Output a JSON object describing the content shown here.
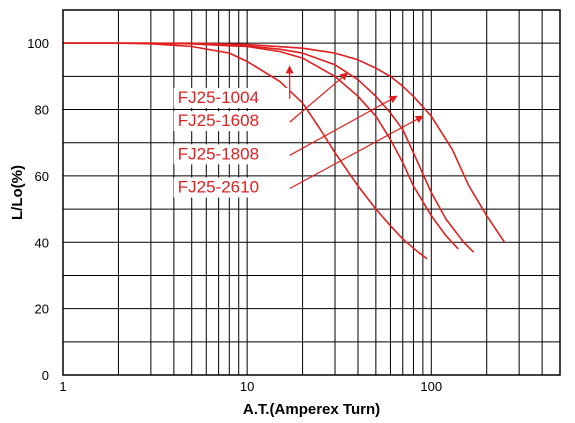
{
  "chart_data": {
    "type": "line",
    "title": "",
    "xlabel": "A.T.(Amperex Turn)",
    "ylabel": "L/Lo(%)",
    "x_scale": "log",
    "xlim": [
      1,
      500
    ],
    "ylim": [
      0,
      110
    ],
    "x_ticks": [
      1,
      10,
      100
    ],
    "y_ticks": [
      0,
      20,
      40,
      60,
      80,
      100
    ],
    "grid": true,
    "legend": "none",
    "line_color": "#e02020",
    "series": [
      {
        "name": "FJ25-1004",
        "label_at": [
          4.2,
          82
        ],
        "arrow_to": [
          17,
          93
        ],
        "points": [
          [
            1,
            100
          ],
          [
            2,
            100
          ],
          [
            3,
            99.8
          ],
          [
            5,
            99
          ],
          [
            8,
            97
          ],
          [
            10,
            94.5
          ],
          [
            15,
            88.5
          ],
          [
            20,
            82
          ],
          [
            25,
            74
          ],
          [
            30,
            67
          ],
          [
            40,
            57
          ],
          [
            50,
            50
          ],
          [
            60,
            45
          ],
          [
            70,
            41
          ],
          [
            85,
            37
          ],
          [
            95,
            35
          ]
        ]
      },
      {
        "name": "FJ25-1608",
        "label_at": [
          4.2,
          75
        ],
        "arrow_to": [
          35,
          91
        ],
        "points": [
          [
            1,
            100
          ],
          [
            3,
            100
          ],
          [
            5,
            99.8
          ],
          [
            8,
            99.2
          ],
          [
            10,
            99
          ],
          [
            15,
            97.5
          ],
          [
            20,
            95.5
          ],
          [
            30,
            90
          ],
          [
            40,
            84
          ],
          [
            50,
            78
          ],
          [
            60,
            71
          ],
          [
            70,
            64
          ],
          [
            80,
            57
          ],
          [
            100,
            48
          ],
          [
            120,
            42
          ],
          [
            140,
            38
          ]
        ]
      },
      {
        "name": "FJ25-1808",
        "label_at": [
          4.2,
          65
        ],
        "arrow_to": [
          65,
          84
        ],
        "points": [
          [
            1,
            100
          ],
          [
            3,
            100
          ],
          [
            5,
            99.8
          ],
          [
            10,
            99.2
          ],
          [
            15,
            98.2
          ],
          [
            20,
            97
          ],
          [
            30,
            93.5
          ],
          [
            40,
            89
          ],
          [
            50,
            84
          ],
          [
            60,
            79
          ],
          [
            70,
            74
          ],
          [
            80,
            67
          ],
          [
            100,
            55
          ],
          [
            120,
            47
          ],
          [
            150,
            40
          ],
          [
            170,
            37
          ]
        ]
      },
      {
        "name": "FJ25-2610",
        "label_at": [
          4.2,
          55
        ],
        "arrow_to": [
          90,
          78
        ],
        "points": [
          [
            1,
            100
          ],
          [
            5,
            100
          ],
          [
            10,
            99.6
          ],
          [
            20,
            98.5
          ],
          [
            30,
            97
          ],
          [
            40,
            95
          ],
          [
            50,
            92.5
          ],
          [
            60,
            90
          ],
          [
            70,
            87
          ],
          [
            80,
            84
          ],
          [
            100,
            78
          ],
          [
            130,
            68
          ],
          [
            160,
            57
          ],
          [
            200,
            48
          ],
          [
            250,
            40
          ]
        ]
      }
    ]
  }
}
